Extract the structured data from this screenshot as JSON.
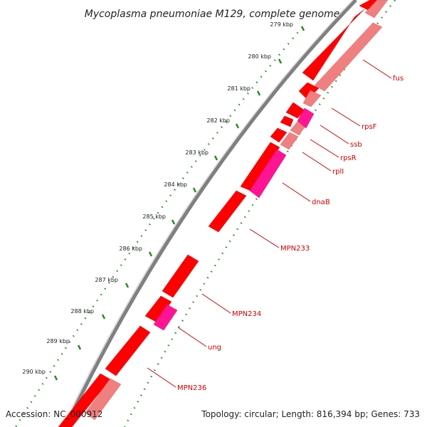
{
  "title": "Mycoplasma pneumoniae M129, complete genome",
  "footer": {
    "accession": "Accession: NC_000912",
    "summary": "Topology: circular; Length: 816,394 bp; Genes: 733"
  },
  "colors": {
    "forward_gene": "#ff0000",
    "reverse_gene": "#f08080",
    "rrna_gene": "#ff1493",
    "backbone": "#808080",
    "tick": "#228b22",
    "label": "#cc0000"
  },
  "scale_labels": [
    "279 kbp",
    "280 kbp",
    "281 kbp",
    "282 kbp",
    "283 kbp",
    "284 kbp",
    "285 kbp",
    "286 kbp",
    "287 kbp",
    "288 kbp",
    "289 kbp",
    "290 kbp"
  ],
  "gene_labels": [
    "fus",
    "rpsF",
    "ssb",
    "rpsR",
    "rplI",
    "dnaB",
    "MPN233",
    "MPN234",
    "ung",
    "MPN236"
  ]
}
